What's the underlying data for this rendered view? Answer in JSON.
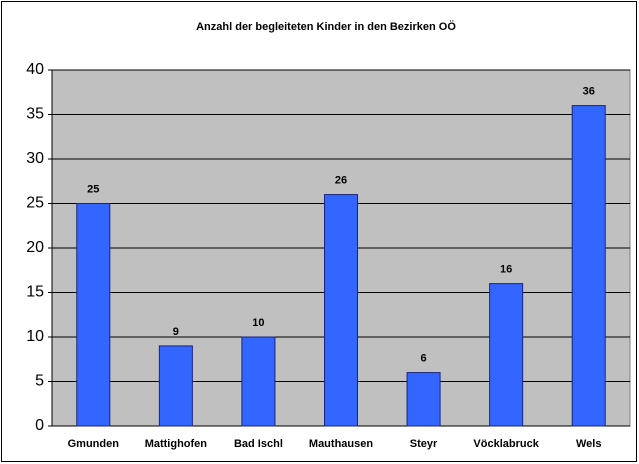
{
  "chart_data": {
    "type": "bar",
    "title": "Anzahl der begleiteten Kinder in den Bezirken OÖ",
    "categories": [
      "Gmunden",
      "Mattighofen",
      "Bad Ischl",
      "Mauthausen",
      "Steyr",
      "Vöcklabruck",
      "Wels"
    ],
    "values": [
      25,
      9,
      10,
      26,
      6,
      16,
      36
    ],
    "color": "#3366ff",
    "ylim": [
      0,
      40
    ],
    "yticks": [
      0,
      5,
      10,
      15,
      20,
      25,
      30,
      35,
      40
    ],
    "grid": true
  }
}
